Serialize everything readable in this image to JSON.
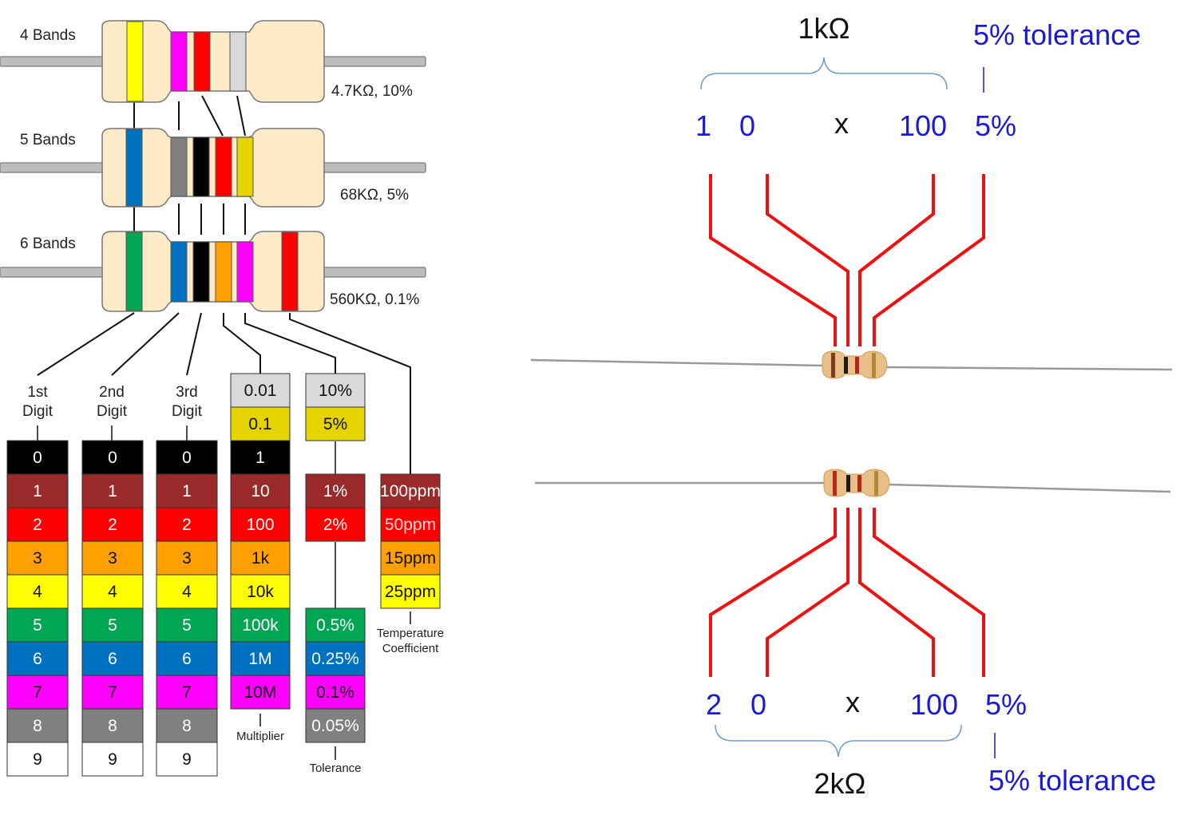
{
  "colors": {
    "black": "#000000",
    "brown": "#9b2a2a",
    "red": "#ff0000",
    "orange": "#ff9f00",
    "yellow": "#ffff00",
    "green": "#00a651",
    "blue": "#0070c0",
    "violet": "#ff00ff",
    "grey": "#808080",
    "white": "#ffffff",
    "gold": "#e6d400",
    "silver": "#d9d9d9",
    "body": "#fdebc8",
    "wire": "#bfbfbf",
    "callout_red": "#ee1111",
    "callout_blue": "#1a1ad6"
  },
  "resistors": [
    {
      "label": "4 Bands",
      "value": "4.7KΩ, 10%"
    },
    {
      "label": "5 Bands",
      "value": "68KΩ, 5%"
    },
    {
      "label": "6 Bands",
      "value": "560KΩ, 0.1%"
    }
  ],
  "columns": {
    "digit1": {
      "title_line1": "1st",
      "title_line2": "Digit"
    },
    "digit2": {
      "title_line1": "2nd",
      "title_line2": "Digit"
    },
    "digit3": {
      "title_line1": "3rd",
      "title_line2": "Digit"
    },
    "multiplier": {
      "caption": "Multiplier"
    },
    "tolerance": {
      "caption": "Tolerance"
    },
    "tempco": {
      "caption_line1": "Temperature",
      "caption_line2": "Coefficient"
    }
  },
  "digit_values": [
    "0",
    "1",
    "2",
    "3",
    "4",
    "5",
    "6",
    "7",
    "8",
    "9"
  ],
  "multiplier_values": [
    "0.01",
    "0.1",
    "1",
    "10",
    "100",
    "1k",
    "10k",
    "100k",
    "1M",
    "10M"
  ],
  "tolerance_values": [
    "10%",
    "5%",
    "1%",
    "2%",
    "0.5%",
    "0.25%",
    "0.1%",
    "0.05%"
  ],
  "tempco_values": [
    "100ppm",
    "50ppm",
    "15ppm",
    "25ppm"
  ],
  "examples": [
    {
      "value_label": "1kΩ",
      "tolerance_label": "5% tolerance",
      "digit1": "1",
      "digit2": "0",
      "times": "x",
      "multiplier": "100",
      "tolerance": "5%"
    },
    {
      "value_label": "2kΩ",
      "tolerance_label": "5% tolerance",
      "digit1": "2",
      "digit2": "0",
      "times": "x",
      "multiplier": "100",
      "tolerance": "5%"
    }
  ]
}
